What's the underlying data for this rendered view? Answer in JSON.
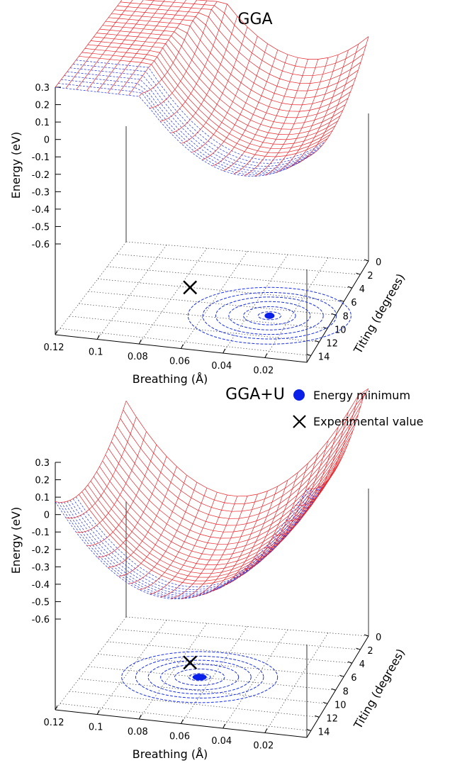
{
  "chart_data": [
    {
      "type": "surface",
      "title": "GGA",
      "xlabel": "Breathing (Å)",
      "ylabel": "Titing (degrees)",
      "zlabel": "Energy (eV)",
      "x_ticks": [
        "0.12",
        "0.1",
        "0.08",
        "0.06",
        "0.04",
        "0.02"
      ],
      "y_ticks": [
        "0",
        "2",
        "4",
        "6",
        "8",
        "10",
        "12",
        "14"
      ],
      "z_ticks": [
        "0.3",
        "0.2",
        "0.1",
        "0",
        "-0.1",
        "-0.2",
        "-0.3",
        "-0.4",
        "-0.5",
        "-0.6"
      ],
      "xlim": [
        0,
        0.12
      ],
      "ylim": [
        0,
        15
      ],
      "zlim": [
        -0.6,
        0.3
      ],
      "energy_minimum": {
        "x": 0.03,
        "y": 9
      },
      "experimental_value": {
        "x": 0.075,
        "y": 6
      },
      "minimum_energy": -0.17
    },
    {
      "type": "surface",
      "title": "GGA+U",
      "xlabel": "Breathing (Å)",
      "ylabel": "Titing (degrees)",
      "zlabel": "Energy (eV)",
      "x_ticks": [
        "0.12",
        "0.1",
        "0.08",
        "0.06",
        "0.04",
        "0.02"
      ],
      "y_ticks": [
        "0",
        "2",
        "4",
        "6",
        "8",
        "10",
        "12",
        "14"
      ],
      "z_ticks": [
        "0.3",
        "0.2",
        "0.1",
        "0",
        "-0.1",
        "-0.2",
        "-0.3",
        "-0.4",
        "-0.5",
        "-0.6"
      ],
      "xlim": [
        0,
        0.12
      ],
      "ylim": [
        0,
        15
      ],
      "zlim": [
        -0.6,
        0.3
      ],
      "energy_minimum": {
        "x": 0.066,
        "y": 8
      },
      "experimental_value": {
        "x": 0.075,
        "y": 6
      },
      "minimum_energy": -0.52
    }
  ],
  "legend": {
    "items": [
      {
        "label": "Energy minimum",
        "symbol": "filled-circle"
      },
      {
        "label": "Experimental value",
        "symbol": "cross"
      }
    ]
  },
  "colors": {
    "surface_grid": "#e8252b",
    "contour": "#1c2fdc",
    "minimum_marker": "#0a1fe8",
    "axis": "#000000",
    "grid": "#444444"
  }
}
